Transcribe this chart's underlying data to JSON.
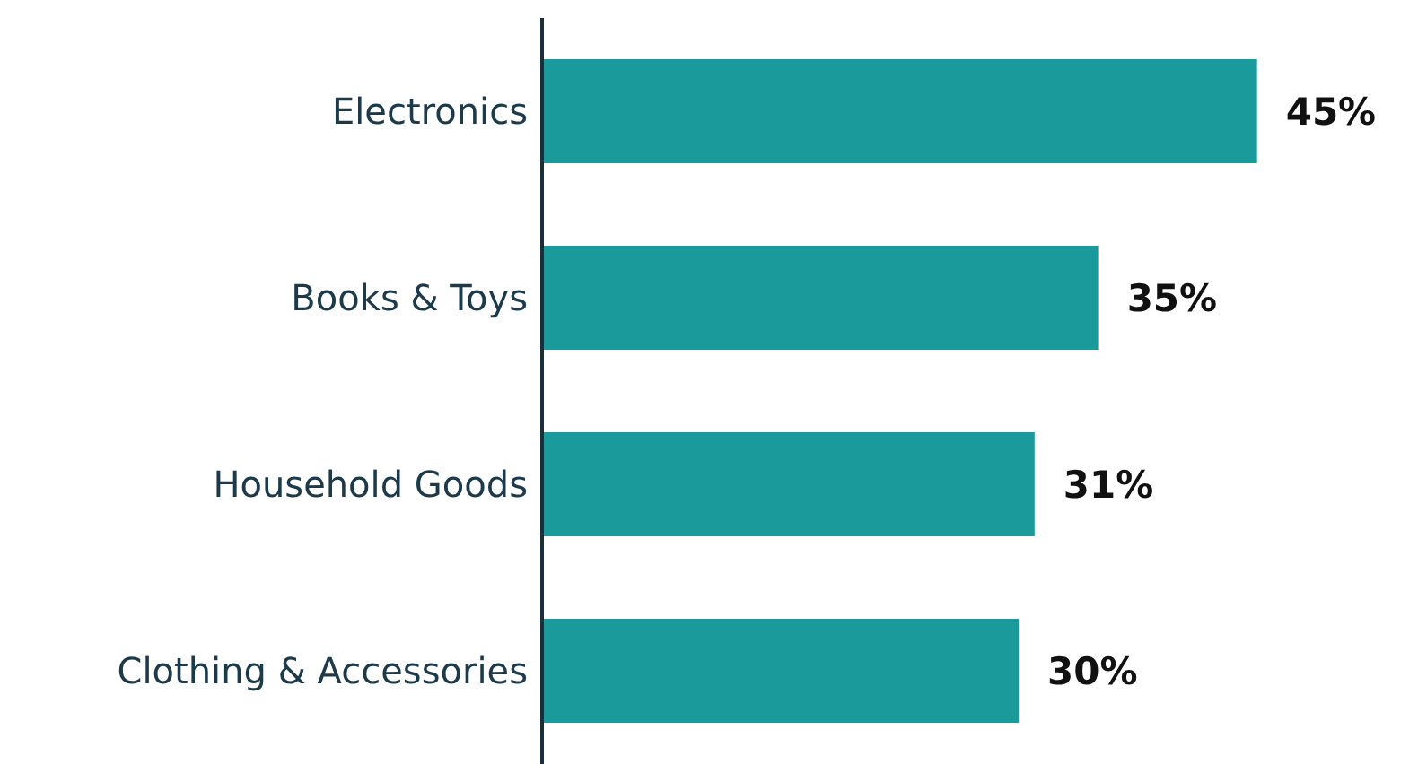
{
  "chart_data": {
    "type": "bar",
    "orientation": "horizontal",
    "categories": [
      "Electronics",
      "Books & Toys",
      "Household Goods",
      "Clothing & Accessories"
    ],
    "values": [
      45,
      35,
      31,
      30
    ],
    "color": "#1b9a9c",
    "value_labels": [
      "45%",
      "35%",
      "31%",
      "30%"
    ],
    "tick_labels": "y",
    "grid": false,
    "legend": false
  }
}
